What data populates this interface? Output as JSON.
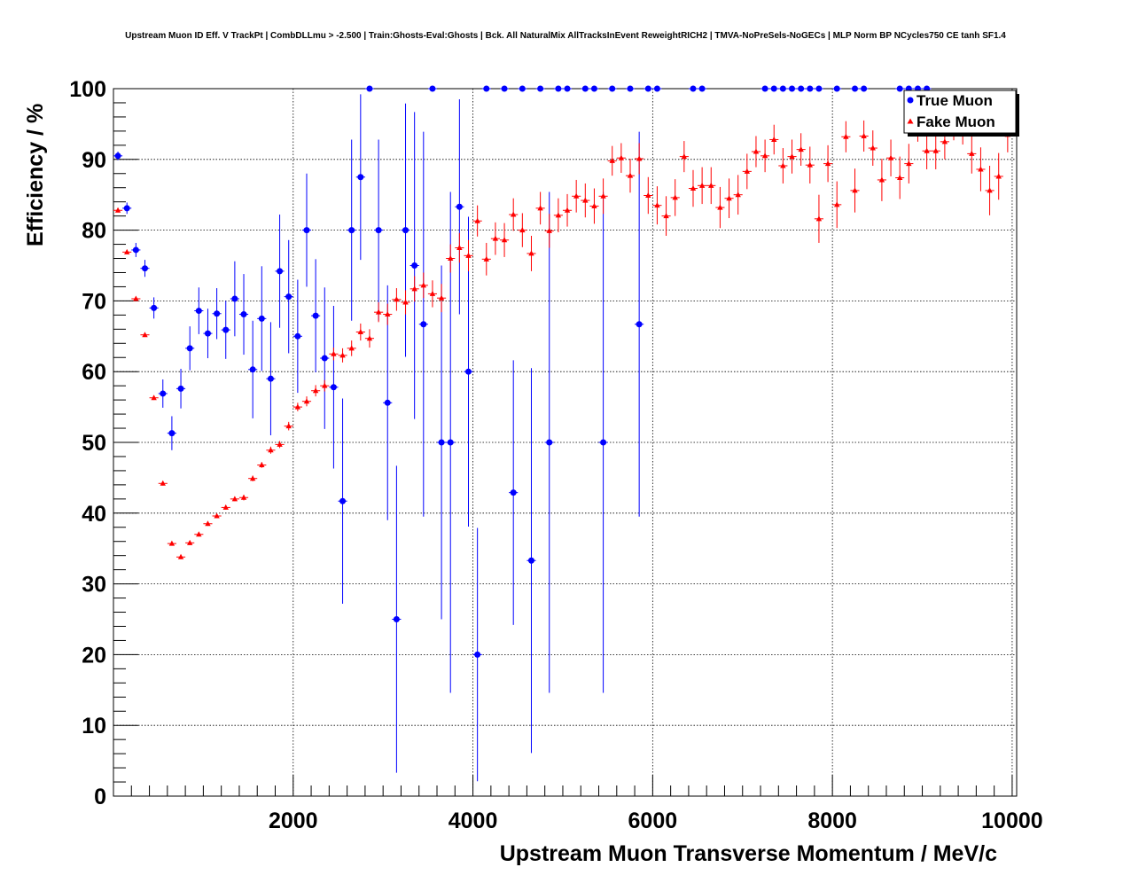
{
  "chart_data": {
    "type": "scatter",
    "title": "Upstream Muon ID Eff. V TrackPt | CombDLLmu > -2.500 | Train:Ghosts-Eval:Ghosts | Bck. All NaturalMix AllTracksInEvent ReweightRICH2 | TMVA-NoPreSels-NoGECs | MLP Norm BP NCycles750 CE tanh SF1.4",
    "xlabel": "Upstream Muon Transverse Momentum / MeV/c",
    "ylabel": "Efficiency / %",
    "xlim": [
      0,
      10050
    ],
    "ylim": [
      0,
      100
    ],
    "x_ticks": [
      2000,
      4000,
      6000,
      8000,
      10000
    ],
    "x_tick_labels": [
      "2000",
      "4000",
      "6000",
      "8000",
      "10000"
    ],
    "y_ticks": [
      0,
      10,
      20,
      30,
      40,
      50,
      60,
      70,
      80,
      90,
      100
    ],
    "y_tick_labels": [
      "0",
      "10",
      "20",
      "30",
      "40",
      "50",
      "60",
      "70",
      "80",
      "90",
      "100"
    ],
    "grid": true,
    "legend": {
      "position": "top-right",
      "entries": [
        "True Muon",
        "Fake Muon"
      ]
    },
    "series": [
      {
        "name": "True Muon",
        "color": "#0000ff",
        "marker": "circle",
        "points": [
          [
            50,
            90.5,
            0.6
          ],
          [
            150,
            83.1,
            0.8
          ],
          [
            250,
            77.2,
            1.0
          ],
          [
            350,
            74.6,
            1.2
          ],
          [
            450,
            69.0,
            1.5
          ],
          [
            550,
            56.9,
            2.0
          ],
          [
            650,
            51.3,
            2.4
          ],
          [
            750,
            57.6,
            2.8
          ],
          [
            850,
            63.3,
            3.1
          ],
          [
            950,
            68.6,
            3.3
          ],
          [
            1050,
            65.4,
            3.5
          ],
          [
            1150,
            68.2,
            3.6
          ],
          [
            1250,
            65.9,
            4.1
          ],
          [
            1350,
            70.3,
            5.3
          ],
          [
            1450,
            68.1,
            5.7
          ],
          [
            1550,
            60.3,
            6.9
          ],
          [
            1650,
            67.5,
            7.4
          ],
          [
            1750,
            59.0,
            8.0
          ],
          [
            1850,
            74.2,
            8.0
          ],
          [
            1950,
            70.6,
            8.0
          ],
          [
            2050,
            65.0,
            8.0
          ],
          [
            2150,
            80.0,
            8.0
          ],
          [
            2250,
            67.9,
            8.0
          ],
          [
            2350,
            61.9,
            10.0
          ],
          [
            2450,
            57.8,
            11.5
          ],
          [
            2550,
            41.7,
            14.5
          ],
          [
            2650,
            80.0,
            12.8
          ],
          [
            2750,
            87.5,
            11.7
          ],
          [
            2850,
            100.0,
            0
          ],
          [
            2950,
            80.0,
            12.8
          ],
          [
            3050,
            55.6,
            16.6
          ],
          [
            3150,
            25.0,
            21.7
          ],
          [
            3250,
            80.0,
            17.9
          ],
          [
            3350,
            75.0,
            21.7
          ],
          [
            3450,
            66.7,
            27.2
          ],
          [
            3550,
            100.0,
            0
          ],
          [
            3650,
            50.0,
            25.0
          ],
          [
            3750,
            50.0,
            35.4
          ],
          [
            3850,
            83.3,
            15.2
          ],
          [
            3950,
            60.0,
            21.9
          ],
          [
            4050,
            20.0,
            17.9
          ],
          [
            4150,
            100.0,
            0
          ],
          [
            4350,
            100.0,
            0
          ],
          [
            4450,
            42.9,
            18.7
          ],
          [
            4550,
            100.0,
            0
          ],
          [
            4650,
            33.3,
            27.2
          ],
          [
            4750,
            100.0,
            0
          ],
          [
            4850,
            50.0,
            35.4
          ],
          [
            4950,
            100.0,
            0
          ],
          [
            5050,
            100.0,
            0
          ],
          [
            5250,
            100.0,
            0
          ],
          [
            5350,
            100.0,
            0
          ],
          [
            5450,
            50.0,
            35.4
          ],
          [
            5550,
            100.0,
            0
          ],
          [
            5750,
            100.0,
            0
          ],
          [
            5850,
            66.7,
            27.2
          ],
          [
            5950,
            100.0,
            0
          ],
          [
            6050,
            100.0,
            0
          ],
          [
            6450,
            100.0,
            0
          ],
          [
            6550,
            100.0,
            0
          ],
          [
            7250,
            100.0,
            0
          ],
          [
            7350,
            100.0,
            0
          ],
          [
            7450,
            100.0,
            0
          ],
          [
            7550,
            100.0,
            0
          ],
          [
            7650,
            100.0,
            0
          ],
          [
            7750,
            100.0,
            0
          ],
          [
            7850,
            100.0,
            0
          ],
          [
            8050,
            100.0,
            0
          ],
          [
            8250,
            100.0,
            0
          ],
          [
            8350,
            100.0,
            0
          ],
          [
            8750,
            100.0,
            0
          ],
          [
            8850,
            100.0,
            0
          ],
          [
            8950,
            100.0,
            0
          ],
          [
            9050,
            100.0,
            0
          ]
        ]
      },
      {
        "name": "Fake Muon",
        "color": "#ff0000",
        "marker": "triangle",
        "points": [
          [
            50,
            82.8,
            0.3
          ],
          [
            150,
            76.9,
            0.3
          ],
          [
            250,
            70.3,
            0.3
          ],
          [
            350,
            65.2,
            0.3
          ],
          [
            450,
            56.3,
            0.3
          ],
          [
            550,
            44.2,
            0.3
          ],
          [
            650,
            35.7,
            0.3
          ],
          [
            750,
            33.8,
            0.3
          ],
          [
            850,
            35.8,
            0.3
          ],
          [
            950,
            37.0,
            0.3
          ],
          [
            1050,
            38.5,
            0.3
          ],
          [
            1150,
            39.6,
            0.3
          ],
          [
            1250,
            40.8,
            0.3
          ],
          [
            1350,
            42.0,
            0.3
          ],
          [
            1450,
            42.2,
            0.4
          ],
          [
            1550,
            44.9,
            0.4
          ],
          [
            1650,
            46.8,
            0.4
          ],
          [
            1750,
            48.9,
            0.5
          ],
          [
            1850,
            49.7,
            0.5
          ],
          [
            1950,
            52.3,
            0.6
          ],
          [
            2050,
            55.0,
            0.6
          ],
          [
            2150,
            55.8,
            0.7
          ],
          [
            2250,
            57.3,
            0.8
          ],
          [
            2350,
            58.0,
            0.8
          ],
          [
            2450,
            62.5,
            0.9
          ],
          [
            2550,
            62.3,
            1.0
          ],
          [
            2650,
            63.3,
            1.1
          ],
          [
            2750,
            65.6,
            1.2
          ],
          [
            2850,
            64.7,
            1.3
          ],
          [
            2950,
            68.4,
            1.4
          ],
          [
            3050,
            68.1,
            1.5
          ],
          [
            3150,
            70.2,
            1.6
          ],
          [
            3250,
            69.8,
            1.7
          ],
          [
            3350,
            71.7,
            1.8
          ],
          [
            3450,
            72.2,
            1.8
          ],
          [
            3550,
            71.0,
            1.9
          ],
          [
            3650,
            70.4,
            2.0
          ],
          [
            3750,
            76.0,
            2.0
          ],
          [
            3850,
            77.5,
            2.1
          ],
          [
            3950,
            76.4,
            2.2
          ],
          [
            4050,
            81.3,
            2.2
          ],
          [
            4150,
            75.9,
            2.3
          ],
          [
            4250,
            78.8,
            2.3
          ],
          [
            4350,
            78.6,
            2.4
          ],
          [
            4450,
            82.2,
            2.3
          ],
          [
            4550,
            80.0,
            2.4
          ],
          [
            4650,
            76.7,
            2.5
          ],
          [
            4750,
            83.1,
            2.3
          ],
          [
            4850,
            79.9,
            2.4
          ],
          [
            4950,
            82.1,
            2.4
          ],
          [
            5050,
            82.8,
            2.3
          ],
          [
            5150,
            84.8,
            2.3
          ],
          [
            5250,
            84.2,
            2.4
          ],
          [
            5350,
            83.4,
            2.5
          ],
          [
            5450,
            84.8,
            2.5
          ],
          [
            5550,
            89.8,
            2.1
          ],
          [
            5650,
            90.2,
            2.1
          ],
          [
            5750,
            87.7,
            2.4
          ],
          [
            5850,
            90.1,
            2.2
          ],
          [
            5950,
            84.9,
            2.6
          ],
          [
            6050,
            83.5,
            2.7
          ],
          [
            6150,
            82.0,
            2.8
          ],
          [
            6250,
            84.6,
            2.6
          ],
          [
            6350,
            90.4,
            2.2
          ],
          [
            6450,
            85.9,
            2.6
          ],
          [
            6550,
            86.3,
            2.6
          ],
          [
            6650,
            86.3,
            2.6
          ],
          [
            6750,
            83.2,
            2.9
          ],
          [
            6850,
            84.5,
            2.8
          ],
          [
            6950,
            85.0,
            2.8
          ],
          [
            7050,
            88.3,
            2.5
          ],
          [
            7150,
            91.1,
            2.2
          ],
          [
            7250,
            90.5,
            2.3
          ],
          [
            7350,
            92.8,
            2.1
          ],
          [
            7450,
            89.1,
            2.5
          ],
          [
            7550,
            90.4,
            2.4
          ],
          [
            7650,
            91.4,
            2.3
          ],
          [
            7750,
            89.2,
            2.6
          ],
          [
            7850,
            81.6,
            3.4
          ],
          [
            7950,
            89.4,
            2.6
          ],
          [
            8050,
            83.6,
            3.3
          ],
          [
            8150,
            93.2,
            2.2
          ],
          [
            8250,
            85.6,
            3.1
          ],
          [
            8350,
            93.3,
            2.2
          ],
          [
            8450,
            91.6,
            2.5
          ],
          [
            8550,
            87.1,
            3.0
          ],
          [
            8650,
            90.2,
            2.6
          ],
          [
            8750,
            87.4,
            3.0
          ],
          [
            8850,
            89.4,
            2.8
          ],
          [
            8950,
            94.6,
            2.1
          ],
          [
            9050,
            91.2,
            2.6
          ],
          [
            9150,
            91.2,
            2.6
          ],
          [
            9250,
            92.5,
            2.5
          ],
          [
            9350,
            94.8,
            2.1
          ],
          [
            9450,
            94.4,
            2.3
          ],
          [
            9550,
            90.8,
            2.8
          ],
          [
            9650,
            88.6,
            3.1
          ],
          [
            9750,
            85.6,
            3.5
          ],
          [
            9850,
            87.6,
            3.3
          ],
          [
            9950,
            93.5,
            2.5
          ]
        ]
      }
    ]
  }
}
